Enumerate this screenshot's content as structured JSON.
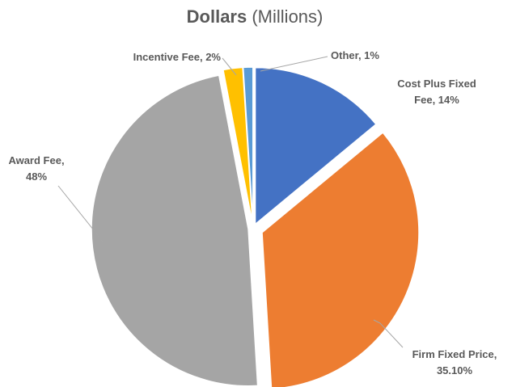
{
  "chart_data": {
    "type": "pie",
    "title": "Dollars",
    "title_unit": "(Millions)",
    "labels": [
      [
        "Cost Plus Fixed",
        "Fee, 14%"
      ],
      [
        "Firm Fixed Price,",
        "35.10%"
      ],
      [
        "Award Fee,",
        "48%"
      ],
      [
        "Incentive Fee, 2%"
      ],
      [
        "Other, 1%"
      ]
    ],
    "values": [
      14,
      35.1,
      48,
      2,
      1
    ],
    "colors": [
      "#4472c4",
      "#ed7d31",
      "#a5a5a5",
      "#ffc000",
      "#5b9bd5"
    ]
  }
}
